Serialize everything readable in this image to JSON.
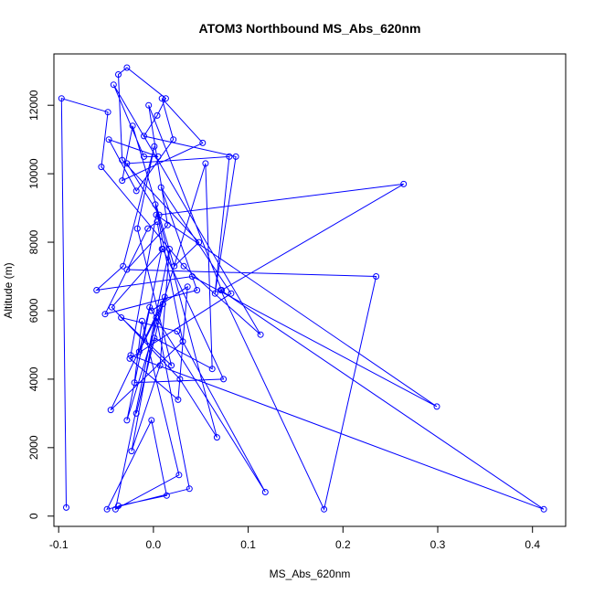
{
  "chart_data": {
    "type": "line",
    "title": "ATOM3 Northbound MS_Abs_620nm",
    "xlabel": "MS_Abs_620nm",
    "ylabel": "Altitude (m)",
    "xlim": [
      -0.105,
      0.435
    ],
    "ylim": [
      -300,
      13500
    ],
    "x_ticks": [
      -0.1,
      0.0,
      0.1,
      0.2,
      0.3,
      0.4
    ],
    "x_tick_labels": [
      "-0.1",
      "0.0",
      "0.1",
      "0.2",
      "0.3",
      "0.4"
    ],
    "y_ticks": [
      0,
      2000,
      4000,
      6000,
      8000,
      10000,
      12000
    ],
    "y_tick_labels": [
      "0",
      "2000",
      "4000",
      "6000",
      "8000",
      "10000",
      "12000"
    ],
    "grid": false,
    "legend": "none",
    "series_color": "#0000ff",
    "series": [
      {
        "x": [
          -0.092,
          -0.097,
          -0.048,
          -0.055,
          0.032,
          0.113,
          -0.042,
          -0.01,
          0.005,
          -0.047,
          -0.018,
          0.021,
          0.009,
          0.052,
          -0.033,
          -0.022,
          0.022,
          0.048,
          -0.033,
          -0.037,
          -0.028,
          0.013,
          0.004,
          -0.01,
          0.087,
          0.065,
          0.08,
          -0.028,
          0.006,
          0.264,
          0.072,
          -0.005,
          0.015,
          -0.028,
          0.235,
          0.18,
          0.071,
          0.412,
          -0.024,
          0.003,
          0.299,
          0.041,
          -0.06,
          -0.032,
          0.001,
          -0.017,
          0.019,
          -0.034,
          0.025,
          0.118,
          -0.004,
          -0.015,
          0.01,
          -0.002,
          0.036,
          0.026,
          -0.025,
          0.082,
          0.008,
          0.046,
          -0.051,
          -0.006,
          0.004,
          0.009,
          -0.028,
          0.055,
          0.062,
          0.001,
          -0.018,
          0.012,
          -0.045,
          0.031,
          0.002,
          0.067,
          0.028,
          -0.044,
          0.01,
          0.074,
          -0.02,
          -0.012,
          0.027,
          -0.04,
          0.017,
          0.007,
          -0.023,
          0.003,
          0.038,
          -0.049,
          -0.002,
          0.014,
          -0.037
        ],
        "y": [
          250,
          12200,
          11800,
          10200,
          7300,
          5300,
          12600,
          10500,
          10500,
          11000,
          9500,
          11000,
          12200,
          10900,
          9800,
          11400,
          7300,
          8000,
          10400,
          12900,
          13100,
          12200,
          11700,
          11100,
          10500,
          6500,
          10500,
          10300,
          8800,
          9700,
          6600,
          12000,
          8500,
          7200,
          7000,
          200,
          6600,
          200,
          4700,
          8800,
          3200,
          7000,
          6600,
          7300,
          10800,
          8400,
          4400,
          5800,
          5400,
          700,
          6100,
          4800,
          6200,
          6000,
          6700,
          3400,
          4600,
          6500,
          9600,
          6600,
          5900,
          8400,
          8600,
          7800,
          2800,
          10300,
          4300,
          5200,
          3000,
          6400,
          3100,
          5100,
          9100,
          2300,
          4000,
          6100,
          7800,
          4000,
          3900,
          5700,
          1200,
          200,
          7800,
          4400,
          1900,
          5800,
          800,
          200,
          2800,
          600,
          300
        ]
      }
    ]
  }
}
